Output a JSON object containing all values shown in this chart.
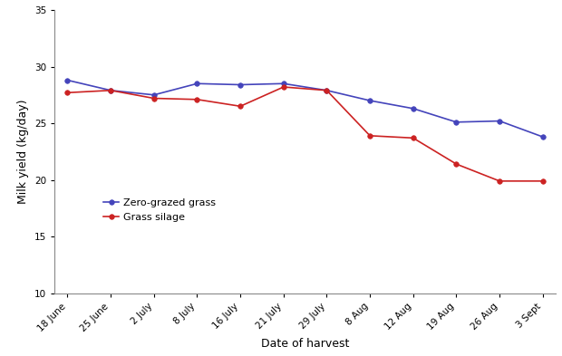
{
  "x_labels": [
    "18 June",
    "25 June",
    "2 July",
    "8 July",
    "16 July",
    "21 July",
    "29 July",
    "8 Aug",
    "12 Aug",
    "19 Aug",
    "26 Aug",
    "3 Sept"
  ],
  "zero_grazed": [
    28.8,
    27.9,
    27.5,
    28.5,
    28.4,
    28.5,
    27.9,
    27.0,
    26.3,
    25.1,
    25.2,
    23.8
  ],
  "grass_silage": [
    27.7,
    27.9,
    27.2,
    27.1,
    26.5,
    28.2,
    27.9,
    23.9,
    23.7,
    21.4,
    19.9,
    19.9
  ],
  "zero_grazed_color": "#4444bb",
  "grass_silage_color": "#cc2222",
  "xlabel": "Date of harvest",
  "ylabel": "Milk yield (kg/day)",
  "ylim": [
    10,
    35
  ],
  "yticks": [
    10,
    15,
    20,
    25,
    30,
    35
  ],
  "legend_zero": "Zero-grazed grass",
  "legend_silage": "Grass silage",
  "background_color": "#ffffff",
  "tick_fontsize": 7.5,
  "label_fontsize": 9,
  "legend_fontsize": 8,
  "marker_size": 4,
  "line_width": 1.2
}
